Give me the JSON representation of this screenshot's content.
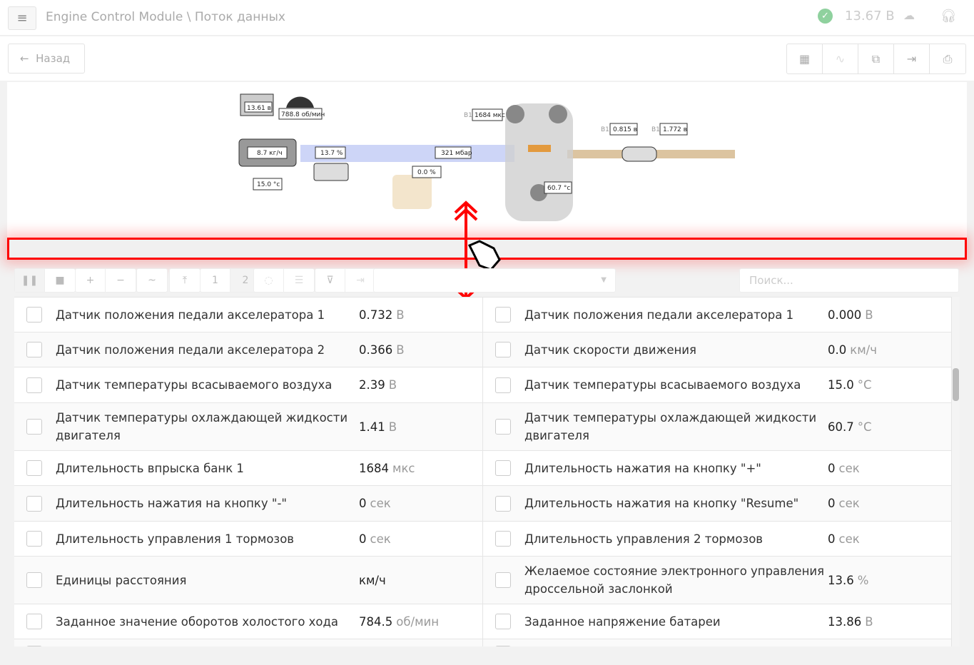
{
  "header": {
    "menu_icon": "hamburger-icon",
    "title": "Engine Control Module",
    "separator": "\\",
    "subtitle": "Поток данных",
    "status_icon": "check-circle-icon",
    "status_color": "#8fd19e",
    "voltage": "13.67 В",
    "cloud_icon": "cloud-download-icon",
    "support_icon": "headset-icon"
  },
  "nav": {
    "back_label": "Назад",
    "back_icon": "arrow-left-icon",
    "tools": [
      "grid-icon",
      "chart-icon",
      "fullscreen-icon",
      "export-icon",
      "print-icon"
    ]
  },
  "diagram": {
    "battery": "13.61 в",
    "rpm": "788.8 об/мин",
    "maf": "8.7 кг/ч",
    "intake_temp": "15.0 °c",
    "throttle": "13.7 %",
    "map": "321 мбар",
    "egr": "0.0 %",
    "injector_bank": "B1",
    "injection": "1684 мкс",
    "coolant": "60.7 °c",
    "o2_bank1": "B1",
    "o2_1": "0.815 в",
    "o2_bank2": "B1",
    "o2_2": "1.772 в"
  },
  "toolbar": {
    "buttons": [
      "pause-icon",
      "stop-icon",
      "plus-icon",
      "minus-icon",
      "wave-icon",
      "fit-icon",
      "1",
      "2",
      "clear-icon",
      "list-icon",
      "filter-clear-icon",
      "goto-end-icon"
    ],
    "select_value": "",
    "search_placeholder": "Поиск..."
  },
  "rows": [
    [
      {
        "name": "Датчик положения педали акселератора 1",
        "value": "0.732",
        "unit": "В"
      },
      {
        "name": "Датчик положения педали акселератора 1",
        "value": "0.000",
        "unit": "В"
      }
    ],
    [
      {
        "name": "Датчик положения педали акселератора 2",
        "value": "0.366",
        "unit": "В"
      },
      {
        "name": "Датчик скорости движения",
        "value": "0.0",
        "unit": "км/ч"
      }
    ],
    [
      {
        "name": "Датчик температуры всасываемого воздуха",
        "value": "2.39",
        "unit": "В"
      },
      {
        "name": "Датчик температуры всасываемого воздуха",
        "value": "15.0",
        "unit": "°C"
      }
    ],
    [
      {
        "name": "Датчик температуры охлаждающей жидкости двигателя",
        "value": "1.41",
        "unit": "В"
      },
      {
        "name": "Датчик температуры охлаждающей жидкости двигателя",
        "value": "60.7",
        "unit": "°C"
      }
    ],
    [
      {
        "name": "Длительность впрыска банк 1",
        "value": "1684",
        "unit": "мкс"
      },
      {
        "name": "Длительность нажатия на кнопку \"+\"",
        "value": "0",
        "unit": "сек"
      }
    ],
    [
      {
        "name": "Длительность нажатия на кнопку \"-\"",
        "value": "0",
        "unit": "сек"
      },
      {
        "name": "Длительность нажатия на кнопку \"Resume\"",
        "value": "0",
        "unit": "сек"
      }
    ],
    [
      {
        "name": "Длительность управления 1 тормозов",
        "value": "0",
        "unit": "сек"
      },
      {
        "name": "Длительность управления 2 тормозов",
        "value": "0",
        "unit": "сек"
      }
    ],
    [
      {
        "name": "Единицы расстояния",
        "value": "км/ч",
        "unit": ""
      },
      {
        "name": "Желаемое состояние электронного управления дроссельной заслонкой",
        "value": "13.6",
        "unit": "%"
      }
    ],
    [
      {
        "name": "Заданное значение оборотов холостого хода",
        "value": "784.5",
        "unit": "об/мин"
      },
      {
        "name": "Заданное напряжение батареи",
        "value": "13.86",
        "unit": "В"
      }
    ],
    [
      {
        "name": "",
        "value": "",
        "unit": ""
      },
      {
        "name": "",
        "value": "",
        "unit": ""
      }
    ]
  ]
}
